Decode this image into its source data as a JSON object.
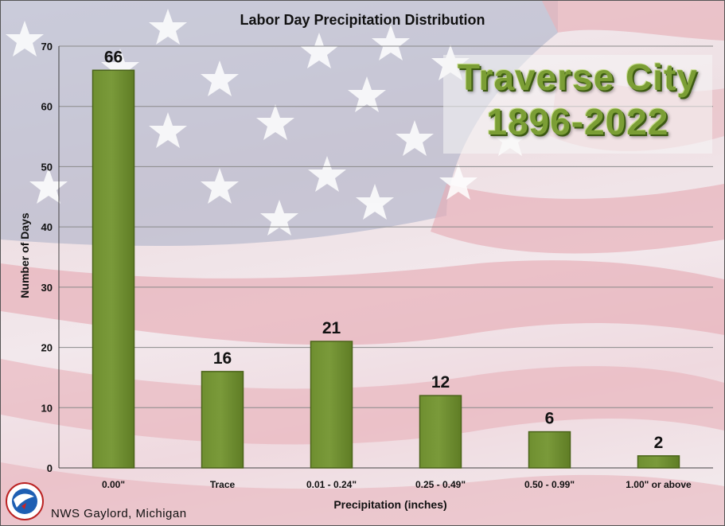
{
  "chart_data": {
    "type": "bar",
    "title": "Labor Day Precipitation Distribution",
    "xlabel": "Precipitation (inches)",
    "ylabel": "Number of Days",
    "categories": [
      "0.00\"",
      "Trace",
      "0.01 - 0.24\"",
      "0.25 - 0.49\"",
      "0.50 - 0.99\"",
      "1.00\" or above"
    ],
    "values": [
      66,
      16,
      21,
      12,
      6,
      2
    ],
    "ylim": [
      0,
      70
    ],
    "yticks": [
      0,
      10,
      20,
      30,
      40,
      50,
      60,
      70
    ],
    "grid": true,
    "bar_color": "#7a9a3a"
  },
  "station": {
    "name": "Traverse City",
    "period": "1896-2022"
  },
  "credit": "NWS Gaylord, Michigan",
  "colors": {
    "flag_red": "#e9b9c0",
    "flag_blue": "#9aa3bd",
    "station_text": "#7b9e35"
  }
}
